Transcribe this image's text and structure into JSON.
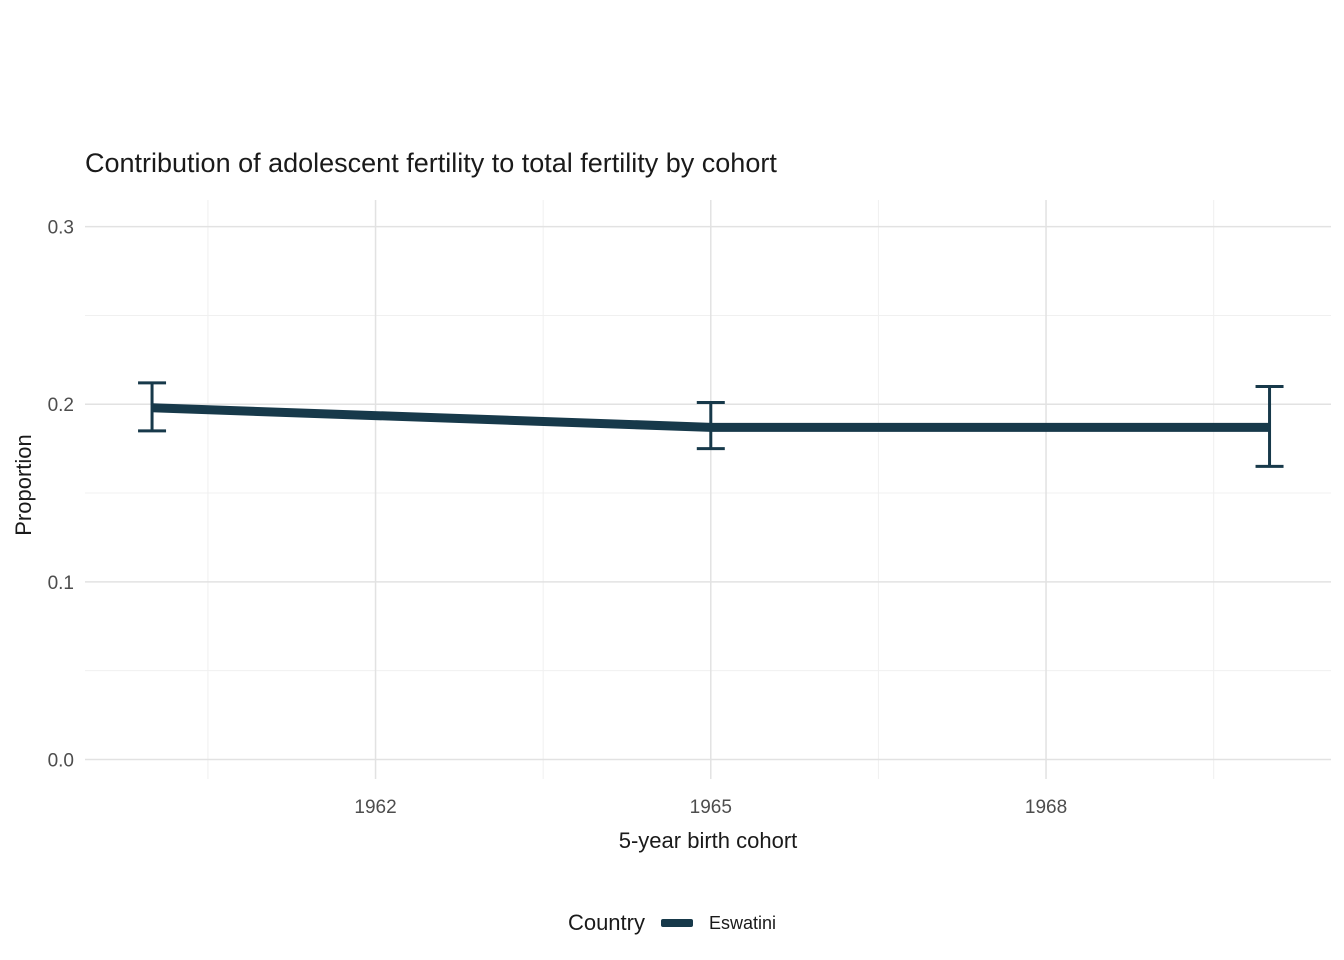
{
  "chart_data": {
    "type": "line",
    "title": "Contribution of adolescent fertility to total fertility by cohort",
    "xlabel": "5-year birth cohort",
    "ylabel": "Proportion",
    "x": [
      1960,
      1965,
      1970
    ],
    "series": [
      {
        "name": "Eswatini",
        "values": [
          0.198,
          0.187,
          0.187
        ],
        "lower": [
          0.185,
          0.175,
          0.165
        ],
        "upper": [
          0.212,
          0.201,
          0.21
        ]
      }
    ],
    "x_ticks": [
      1962,
      1965,
      1968
    ],
    "x_tick_labels": [
      "1962",
      "1965",
      "1968"
    ],
    "y_ticks": [
      0.0,
      0.1,
      0.2,
      0.3
    ],
    "y_tick_labels": [
      "0.0",
      "0.1",
      "0.2",
      "0.3"
    ],
    "x_minor": [
      1960.5,
      1963.5,
      1966.5,
      1969.5
    ],
    "y_minor": [
      0.05,
      0.15,
      0.25
    ],
    "x_domain": [
      1959.4,
      1970.55
    ],
    "y_domain": [
      -0.011,
      0.315
    ],
    "grid": true,
    "legend_position": "bottom",
    "colors": {
      "line": "#17394a",
      "grid_major": "#e2e2e2",
      "grid_minor": "#f0f0f0",
      "tick_label": "#4d4d4d",
      "text": "#1a1a1a",
      "background": "#ffffff"
    }
  },
  "legend": {
    "title": "Country",
    "entries": [
      {
        "label": "Eswatini",
        "color": "#17394a"
      }
    ]
  }
}
